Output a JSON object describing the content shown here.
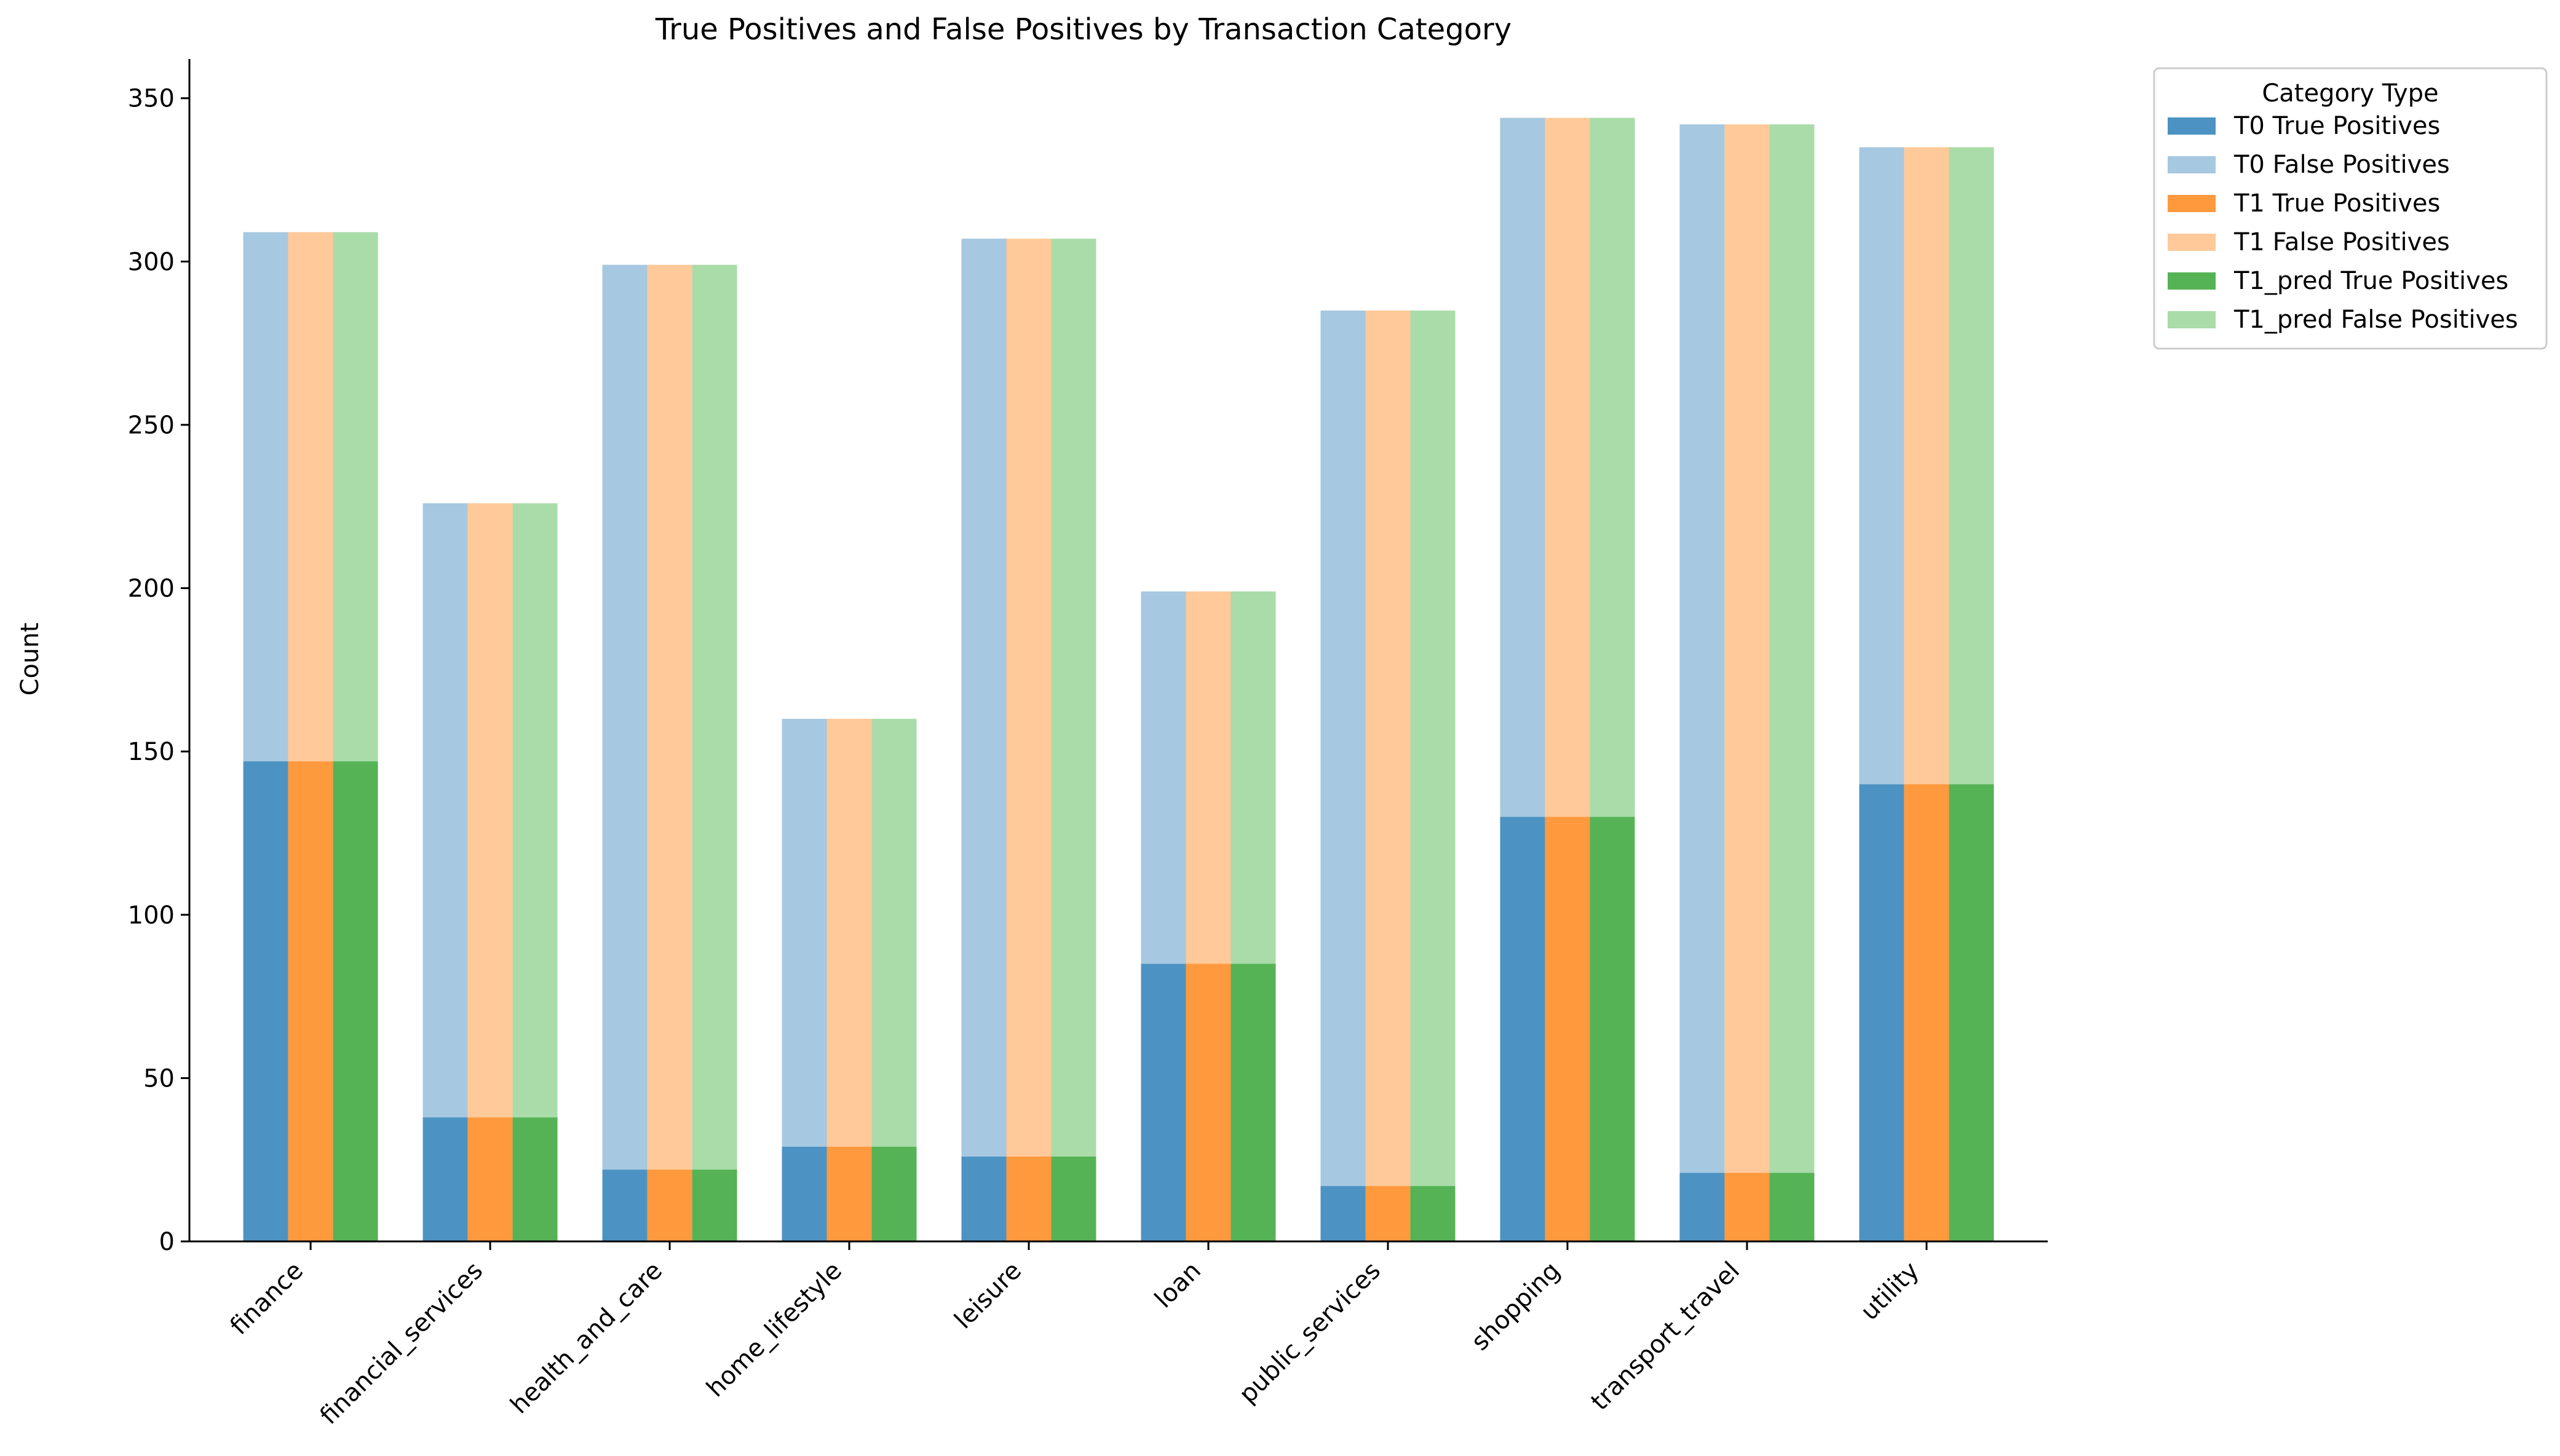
{
  "chart_data": {
    "type": "bar",
    "title": "True Positives and False Positives by Transaction Category",
    "xlabel": "",
    "ylabel": "Count",
    "ylim": [
      0,
      362
    ],
    "yticks": [
      0,
      50,
      100,
      150,
      200,
      250,
      300,
      350
    ],
    "grid": false,
    "legend": {
      "title": "Category Type",
      "placement": "outside-top-right"
    },
    "stacked": true,
    "categories": [
      "finance",
      "financial_services",
      "health_and_care",
      "home_lifestyle",
      "leisure",
      "loan",
      "public_services",
      "shopping",
      "transport_travel",
      "utility"
    ],
    "groups": [
      {
        "name": "T0",
        "true_positives": {
          "name": "T0 True Positives",
          "color": "#4c93c3",
          "values": [
            147,
            38,
            22,
            29,
            26,
            85,
            17,
            130,
            21,
            140
          ]
        },
        "false_positives": {
          "name": "T0 False Positives",
          "color": "#a6c8e0",
          "values": [
            162,
            188,
            277,
            131,
            281,
            114,
            268,
            214,
            321,
            195
          ]
        }
      },
      {
        "name": "T1",
        "true_positives": {
          "name": "T1 True Positives",
          "color": "#ff993e",
          "values": [
            147,
            38,
            22,
            29,
            26,
            85,
            17,
            130,
            21,
            140
          ]
        },
        "false_positives": {
          "name": "T1 False Positives",
          "color": "#ffc999",
          "values": [
            162,
            188,
            277,
            131,
            281,
            114,
            268,
            214,
            321,
            195
          ]
        }
      },
      {
        "name": "T1_pred",
        "true_positives": {
          "name": "T1_pred True Positives",
          "color": "#55b355",
          "values": [
            147,
            38,
            22,
            29,
            26,
            85,
            17,
            130,
            21,
            140
          ]
        },
        "false_positives": {
          "name": "T1_pred False Positives",
          "color": "#a9dca9",
          "values": [
            162,
            188,
            277,
            131,
            281,
            114,
            268,
            214,
            321,
            195
          ]
        }
      }
    ]
  }
}
